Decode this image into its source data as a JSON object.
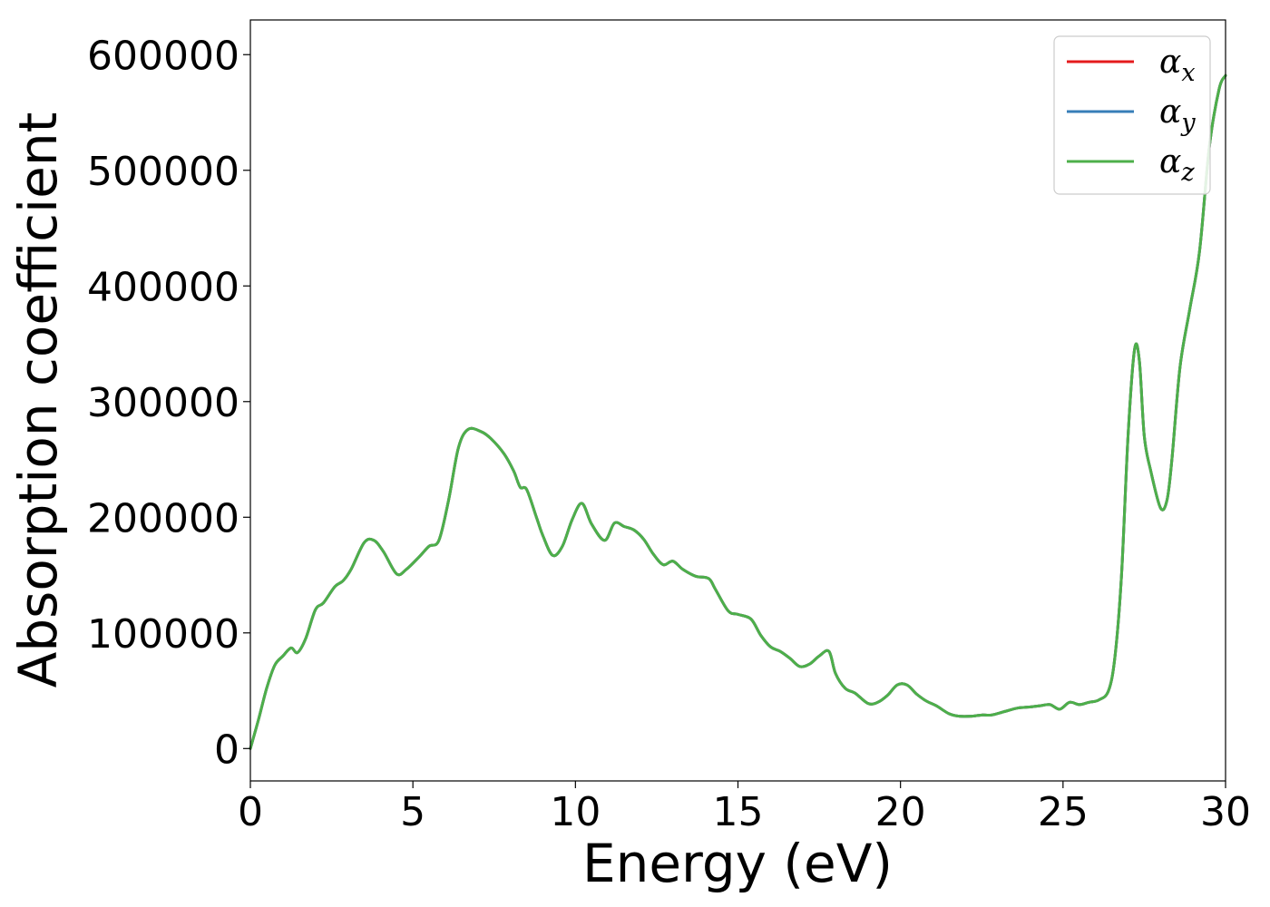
{
  "chart_data": {
    "type": "line",
    "title": "",
    "xlabel": "Energy (eV)",
    "ylabel": "Absorption coefficient",
    "xlim": [
      0,
      30
    ],
    "ylim": [
      -28000,
      630000
    ],
    "xticks": [
      0,
      5,
      10,
      15,
      20,
      25,
      30
    ],
    "yticks": [
      0,
      100000,
      200000,
      300000,
      400000,
      500000,
      600000
    ],
    "grid": false,
    "legend_position": "top-right",
    "series": [
      {
        "name": "α_x",
        "legend_base": "α",
        "legend_sub": "x",
        "color": "#e41a1c",
        "x": [
          0,
          0.25,
          0.5,
          0.75,
          1.0,
          1.25,
          1.45,
          1.7,
          2.0,
          2.25,
          2.6,
          2.85,
          3.1,
          3.5,
          3.8,
          4.1,
          4.5,
          4.8,
          5.2,
          5.5,
          5.8,
          6.1,
          6.4,
          6.7,
          7.1,
          7.4,
          7.8,
          8.1,
          8.3,
          8.5,
          8.8,
          9.0,
          9.3,
          9.6,
          9.9,
          10.2,
          10.5,
          10.9,
          11.2,
          11.5,
          11.8,
          12.1,
          12.4,
          12.7,
          13.0,
          13.3,
          13.7,
          14.1,
          14.3,
          14.7,
          15.0,
          15.4,
          15.7,
          16.0,
          16.3,
          16.6,
          16.9,
          17.2,
          17.5,
          17.8,
          18.0,
          18.3,
          18.6,
          19.0,
          19.3,
          19.6,
          19.9,
          20.2,
          20.5,
          20.8,
          21.1,
          21.5,
          21.8,
          22.2,
          22.5,
          22.8,
          23.2,
          23.6,
          24.0,
          24.3,
          24.6,
          24.9,
          25.2,
          25.5,
          25.8,
          26.1,
          26.4,
          26.6,
          26.8,
          27.0,
          27.2,
          27.35,
          27.5,
          27.7,
          28.0,
          28.2,
          28.35,
          28.6,
          28.9,
          29.2,
          29.5,
          29.8,
          30.0
        ],
        "y": [
          0,
          25000,
          52000,
          72000,
          80000,
          87000,
          83000,
          95000,
          120000,
          126000,
          140000,
          145000,
          155000,
          178000,
          180000,
          170000,
          151000,
          155000,
          166000,
          175000,
          180000,
          215000,
          260000,
          276000,
          274000,
          268000,
          255000,
          240000,
          226000,
          224000,
          200000,
          184000,
          167000,
          175000,
          198000,
          212000,
          194000,
          180000,
          195000,
          192000,
          189000,
          181000,
          168000,
          159000,
          162000,
          155000,
          149000,
          147000,
          138000,
          119000,
          116000,
          112000,
          98000,
          88000,
          84000,
          78000,
          71000,
          73000,
          80000,
          84000,
          65000,
          52000,
          48000,
          39000,
          40000,
          46000,
          55000,
          55000,
          47000,
          41000,
          37000,
          30000,
          28000,
          28000,
          29000,
          29000,
          32000,
          35000,
          36000,
          37000,
          38000,
          34000,
          40000,
          38000,
          40000,
          42000,
          50000,
          80000,
          150000,
          270000,
          345000,
          335000,
          270000,
          240000,
          208000,
          215000,
          250000,
          330000,
          380000,
          430000,
          520000,
          570000,
          582000
        ]
      },
      {
        "name": "α_y",
        "legend_base": "α",
        "legend_sub": "y",
        "color": "#377eb8",
        "x": [
          0,
          0.25,
          0.5,
          0.75,
          1.0,
          1.25,
          1.45,
          1.7,
          2.0,
          2.25,
          2.6,
          2.85,
          3.1,
          3.5,
          3.8,
          4.1,
          4.5,
          4.8,
          5.2,
          5.5,
          5.8,
          6.1,
          6.4,
          6.7,
          7.1,
          7.4,
          7.8,
          8.1,
          8.3,
          8.5,
          8.8,
          9.0,
          9.3,
          9.6,
          9.9,
          10.2,
          10.5,
          10.9,
          11.2,
          11.5,
          11.8,
          12.1,
          12.4,
          12.7,
          13.0,
          13.3,
          13.7,
          14.1,
          14.3,
          14.7,
          15.0,
          15.4,
          15.7,
          16.0,
          16.3,
          16.6,
          16.9,
          17.2,
          17.5,
          17.8,
          18.0,
          18.3,
          18.6,
          19.0,
          19.3,
          19.6,
          19.9,
          20.2,
          20.5,
          20.8,
          21.1,
          21.5,
          21.8,
          22.2,
          22.5,
          22.8,
          23.2,
          23.6,
          24.0,
          24.3,
          24.6,
          24.9,
          25.2,
          25.5,
          25.8,
          26.1,
          26.4,
          26.6,
          26.8,
          27.0,
          27.2,
          27.35,
          27.5,
          27.7,
          28.0,
          28.2,
          28.35,
          28.6,
          28.9,
          29.2,
          29.5,
          29.8,
          30.0
        ],
        "y": [
          0,
          25000,
          52000,
          72000,
          80000,
          87000,
          83000,
          95000,
          120000,
          126000,
          140000,
          145000,
          155000,
          178000,
          180000,
          170000,
          151000,
          155000,
          166000,
          175000,
          180000,
          215000,
          260000,
          276000,
          274000,
          268000,
          255000,
          240000,
          226000,
          224000,
          200000,
          184000,
          167000,
          175000,
          198000,
          212000,
          194000,
          180000,
          195000,
          192000,
          189000,
          181000,
          168000,
          159000,
          162000,
          155000,
          149000,
          147000,
          138000,
          119000,
          116000,
          112000,
          98000,
          88000,
          84000,
          78000,
          71000,
          73000,
          80000,
          84000,
          65000,
          52000,
          48000,
          39000,
          40000,
          46000,
          55000,
          55000,
          47000,
          41000,
          37000,
          30000,
          28000,
          28000,
          29000,
          29000,
          32000,
          35000,
          36000,
          37000,
          38000,
          34000,
          40000,
          38000,
          40000,
          42000,
          50000,
          80000,
          150000,
          270000,
          345000,
          335000,
          270000,
          240000,
          208000,
          215000,
          250000,
          330000,
          380000,
          430000,
          520000,
          570000,
          582000
        ]
      },
      {
        "name": "α_z",
        "legend_base": "α",
        "legend_sub": "z",
        "color": "#4daf4a",
        "x": [
          0,
          0.25,
          0.5,
          0.75,
          1.0,
          1.25,
          1.45,
          1.7,
          2.0,
          2.25,
          2.6,
          2.85,
          3.1,
          3.5,
          3.8,
          4.1,
          4.5,
          4.8,
          5.2,
          5.5,
          5.8,
          6.1,
          6.4,
          6.7,
          7.1,
          7.4,
          7.8,
          8.1,
          8.3,
          8.5,
          8.8,
          9.0,
          9.3,
          9.6,
          9.9,
          10.2,
          10.5,
          10.9,
          11.2,
          11.5,
          11.8,
          12.1,
          12.4,
          12.7,
          13.0,
          13.3,
          13.7,
          14.1,
          14.3,
          14.7,
          15.0,
          15.4,
          15.7,
          16.0,
          16.3,
          16.6,
          16.9,
          17.2,
          17.5,
          17.8,
          18.0,
          18.3,
          18.6,
          19.0,
          19.3,
          19.6,
          19.9,
          20.2,
          20.5,
          20.8,
          21.1,
          21.5,
          21.8,
          22.2,
          22.5,
          22.8,
          23.2,
          23.6,
          24.0,
          24.3,
          24.6,
          24.9,
          25.2,
          25.5,
          25.8,
          26.1,
          26.4,
          26.6,
          26.8,
          27.0,
          27.2,
          27.35,
          27.5,
          27.7,
          28.0,
          28.2,
          28.35,
          28.6,
          28.9,
          29.2,
          29.5,
          29.8,
          30.0
        ],
        "y": [
          0,
          25000,
          52000,
          72000,
          80000,
          87000,
          83000,
          95000,
          120000,
          126000,
          140000,
          145000,
          155000,
          178000,
          180000,
          170000,
          151000,
          155000,
          166000,
          175000,
          180000,
          215000,
          260000,
          276000,
          274000,
          268000,
          255000,
          240000,
          226000,
          224000,
          200000,
          184000,
          167000,
          175000,
          198000,
          212000,
          194000,
          180000,
          195000,
          192000,
          189000,
          181000,
          168000,
          159000,
          162000,
          155000,
          149000,
          147000,
          138000,
          119000,
          116000,
          112000,
          98000,
          88000,
          84000,
          78000,
          71000,
          73000,
          80000,
          84000,
          65000,
          52000,
          48000,
          39000,
          40000,
          46000,
          55000,
          55000,
          47000,
          41000,
          37000,
          30000,
          28000,
          28000,
          29000,
          29000,
          32000,
          35000,
          36000,
          37000,
          38000,
          34000,
          40000,
          38000,
          40000,
          42000,
          50000,
          80000,
          150000,
          270000,
          345000,
          335000,
          270000,
          240000,
          208000,
          215000,
          250000,
          330000,
          380000,
          430000,
          520000,
          570000,
          582000
        ]
      }
    ]
  }
}
